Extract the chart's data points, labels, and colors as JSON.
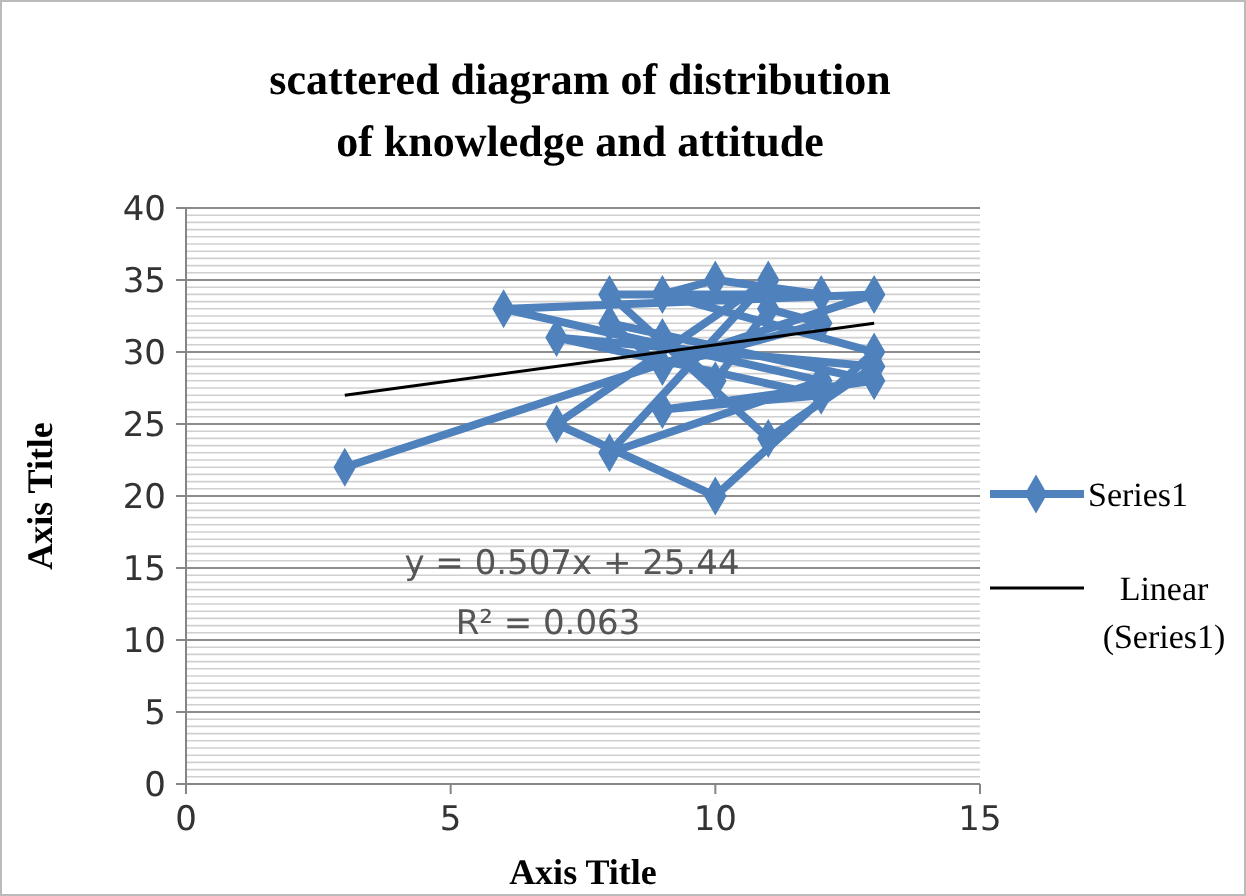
{
  "chart_data": {
    "type": "line",
    "title": "scattered diagram of distribution of knowledge and attitude",
    "xlabel": "Axis Title",
    "ylabel": "Axis Title",
    "xlim": [
      0,
      15
    ],
    "xticks": [
      0,
      5,
      10,
      15
    ],
    "ylim": [
      0,
      40
    ],
    "yticks": [
      0,
      5,
      10,
      15,
      20,
      25,
      30,
      35,
      40
    ],
    "grid": "y",
    "legend": "right",
    "marker": "diamond",
    "line_style": "solid",
    "series": [
      {
        "name": "Series1",
        "color": "#4f81bd",
        "x": [
          3,
          13,
          6,
          12,
          8,
          11,
          7,
          10,
          13,
          9,
          10,
          12,
          8,
          11,
          13,
          7,
          12,
          9,
          13,
          8,
          9,
          12,
          11,
          10,
          9
        ],
        "values": [
          22,
          34,
          33,
          28,
          23,
          35,
          25,
          20,
          30,
          34,
          35,
          34,
          34,
          24,
          29,
          31,
          27,
          26,
          28,
          32,
          29,
          32,
          33,
          28,
          31
        ]
      },
      {
        "name": "Linear (Series1)",
        "color": "#000000",
        "marker": "none",
        "x": [
          3,
          13
        ],
        "values": [
          27,
          32
        ]
      }
    ],
    "annotations": [
      "y = 0.507x + 25.44",
      "R² = 0.063"
    ]
  }
}
